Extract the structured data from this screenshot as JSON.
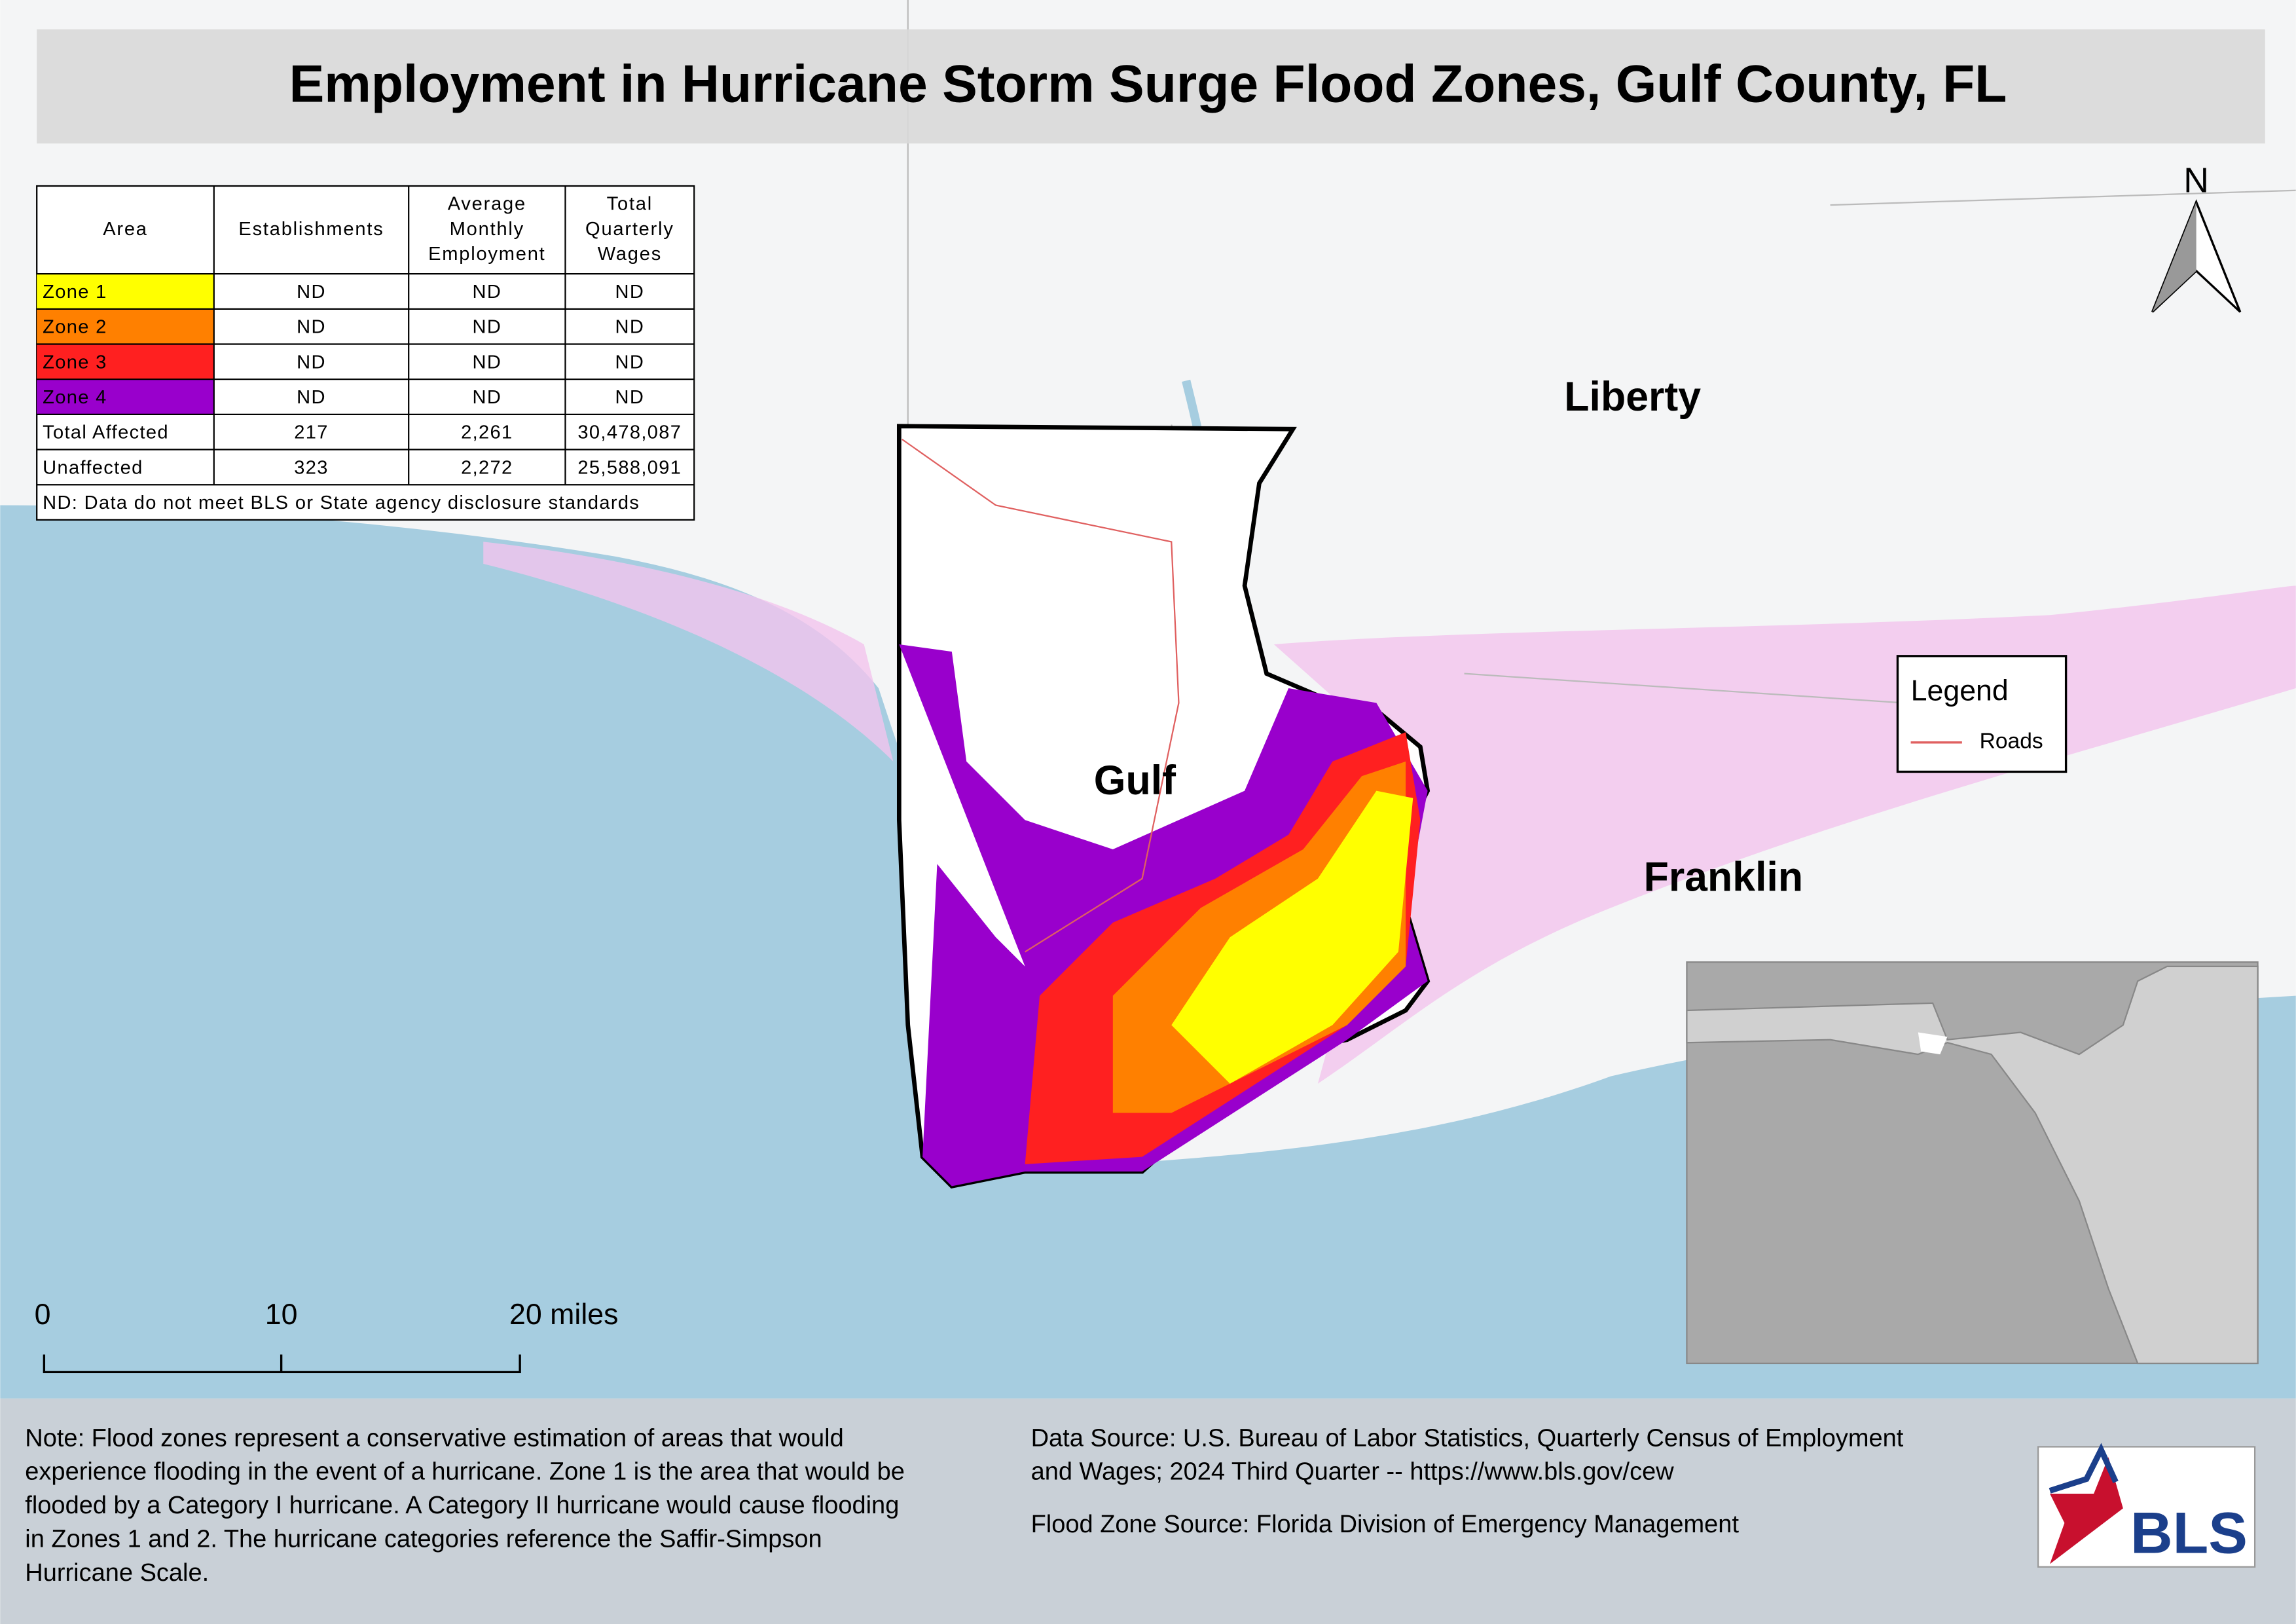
{
  "title": "Employment in Hurricane Storm Surge Flood Zones, Gulf County, FL",
  "table": {
    "headers": [
      [
        "Area"
      ],
      [
        "Establishments"
      ],
      [
        "Average",
        "Monthly",
        "Employment"
      ],
      [
        "Total",
        "Quarterly",
        "Wages"
      ]
    ],
    "rows": [
      [
        "Zone 1",
        "ND",
        "ND",
        "ND"
      ],
      [
        "Zone 2",
        "ND",
        "ND",
        "ND"
      ],
      [
        "Zone 3",
        "ND",
        "ND",
        "ND"
      ],
      [
        "Zone 4",
        "ND",
        "ND",
        "ND"
      ],
      [
        "Total Affected",
        "217",
        "2,261",
        "30,478,087"
      ],
      [
        "Unaffected",
        "323",
        "2,272",
        "25,588,091"
      ]
    ],
    "row_colors": [
      "#ffff00",
      "#ff8000",
      "#ff2020",
      "#9900cc"
    ],
    "footnote": "ND: Data do not meet BLS or State agency disclosure standards"
  },
  "north": "N",
  "places": [
    "Liberty",
    "Gulf",
    "Franklin"
  ],
  "legend": {
    "title": "Legend",
    "items": [
      {
        "name": "Roads",
        "color": "#e06060"
      }
    ]
  },
  "scale_bar": [
    "0",
    "10",
    "20 miles"
  ],
  "note": [
    "Note: Flood zones represent a conservative estimation of areas that would",
    "experience flooding in the event of a hurricane. Zone 1 is the area that would be",
    "flooded by a Category I hurricane. A Category II hurricane would cause flooding",
    "in Zones 1 and 2. The hurricane categories reference the Saffir-Simpson",
    "Hurricane Scale."
  ],
  "sources": [
    "Data Source: U.S. Bureau of Labor Statistics, Quarterly Census of Employment",
    "and Wages; 2024 Third Quarter -- https://www.bls.gov/cew",
    "Flood Zone Source: Florida Division of Emergency Management"
  ],
  "logo": "BLS"
}
